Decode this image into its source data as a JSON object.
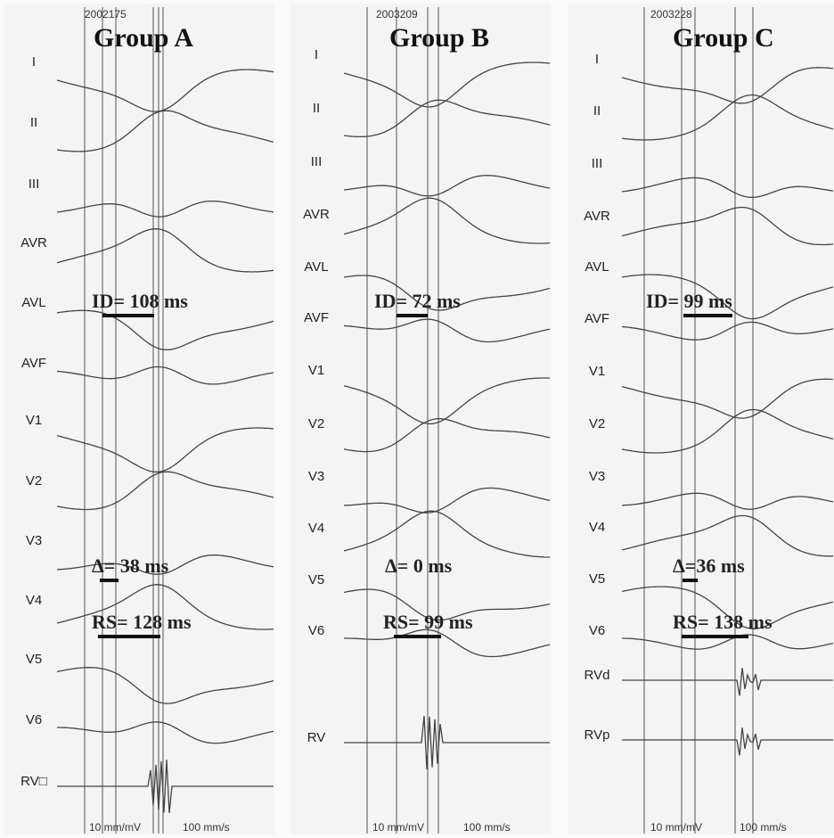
{
  "panels": [
    {
      "record_id": "2002175",
      "title": "Group A",
      "leads": [
        "I",
        "II",
        "III",
        "AVR",
        "AVL",
        "AVF",
        "V1",
        "V2",
        "V3",
        "V4",
        "V5",
        "V6",
        "RV□"
      ],
      "annotations": {
        "id": "ID= 108 ms",
        "delta": "Δ= 38 ms",
        "rs": "RS= 128 ms"
      },
      "footer": {
        "gain": "10 mm/mV",
        "speed": "100 mm/s"
      }
    },
    {
      "record_id": "2003209",
      "title": "Group  B",
      "leads": [
        "I",
        "II",
        "III",
        "AVR",
        "AVL",
        "AVF",
        "V1",
        "V2",
        "V3",
        "V4",
        "V5",
        "V6",
        "RV"
      ],
      "annotations": {
        "id": "ID= 72 ms",
        "delta": "Δ= 0 ms",
        "rs": "RS= 99 ms"
      },
      "footer": {
        "gain": "10 mm/mV",
        "speed": "100 mm/s"
      }
    },
    {
      "record_id": "2003228",
      "title": "Group C",
      "leads": [
        "I",
        "II",
        "III",
        "AVR",
        "AVL",
        "AVF",
        "V1",
        "V2",
        "V3",
        "V4",
        "V5",
        "V6",
        "RVd",
        "RVp"
      ],
      "annotations": {
        "id": "ID=  99 ms",
        "delta": "Δ=36 ms",
        "rs": "RS= 138 ms"
      },
      "footer": {
        "gain": "10 mm/mV",
        "speed": "100 mm/s"
      }
    }
  ]
}
